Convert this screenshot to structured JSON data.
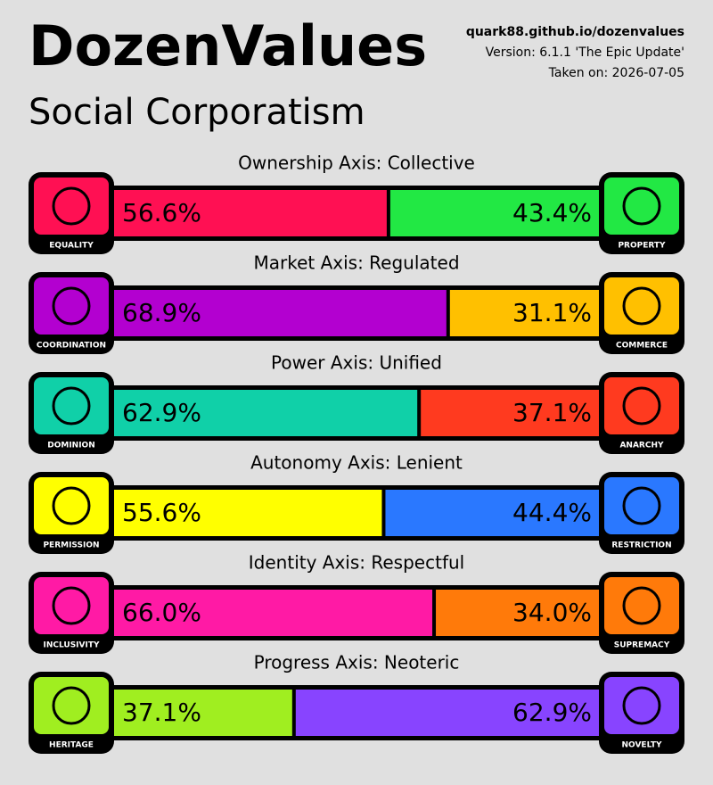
{
  "header": {
    "title": "DozenValues",
    "subtitle": "Social Corporatism",
    "url": "quark88.github.io/dozenvalues",
    "version": "Version: 6.1.1 'The Epic Update'",
    "date": "Taken on: 2026-07-05"
  },
  "chart_data": {
    "type": "split-bar",
    "xlim": [
      0,
      100
    ],
    "axes": [
      {
        "title": "Ownership Axis: Collective",
        "left": {
          "label": "EQUALITY",
          "value": 56.6,
          "value_label": "56.6%",
          "color": "#ff1053"
        },
        "right": {
          "label": "PROPERTY",
          "value": 43.4,
          "value_label": "43.4%",
          "color": "#22e844"
        }
      },
      {
        "title": "Market Axis: Regulated",
        "left": {
          "label": "COORDINATION",
          "value": 68.9,
          "value_label": "68.9%",
          "color": "#b300d0"
        },
        "right": {
          "label": "COMMERCE",
          "value": 31.1,
          "value_label": "31.1%",
          "color": "#ffc000"
        }
      },
      {
        "title": "Power Axis: Unified",
        "left": {
          "label": "DOMINION",
          "value": 62.9,
          "value_label": "62.9%",
          "color": "#10d0a8"
        },
        "right": {
          "label": "ANARCHY",
          "value": 37.1,
          "value_label": "37.1%",
          "color": "#ff3a1f"
        }
      },
      {
        "title": "Autonomy Axis: Lenient",
        "left": {
          "label": "PERMISSION",
          "value": 55.6,
          "value_label": "55.6%",
          "color": "#ffff00"
        },
        "right": {
          "label": "RESTRICTION",
          "value": 44.4,
          "value_label": "44.4%",
          "color": "#2a78ff"
        }
      },
      {
        "title": "Identity Axis: Respectful",
        "left": {
          "label": "INCLUSIVITY",
          "value": 66.0,
          "value_label": "66.0%",
          "color": "#ff1aa5"
        },
        "right": {
          "label": "SUPREMACY",
          "value": 34.0,
          "value_label": "34.0%",
          "color": "#ff7a0a"
        }
      },
      {
        "title": "Progress Axis: Neoteric",
        "left": {
          "label": "HERITAGE",
          "value": 37.1,
          "value_label": "37.1%",
          "color": "#a0ee20"
        },
        "right": {
          "label": "NOVELTY",
          "value": 62.9,
          "value_label": "62.9%",
          "color": "#8844ff"
        }
      }
    ]
  }
}
